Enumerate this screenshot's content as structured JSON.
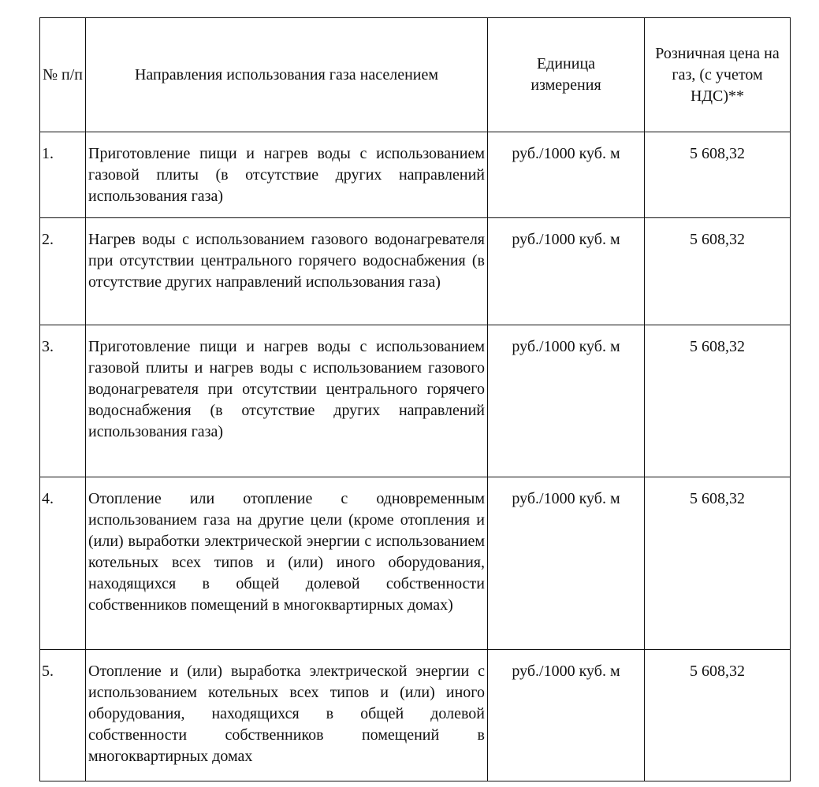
{
  "table": {
    "headers": {
      "number": "№ п/п",
      "direction": "Направления использования газа населением",
      "unit": "Единица измерения",
      "price": "Розничная цена на газ, (с учетом НДС)**"
    },
    "rows": [
      {
        "number": "1.",
        "direction": "Приготовление пищи и нагрев воды с использованием газовой плиты (в отсутствие других направлений использования газа)",
        "unit": "руб./1000 куб. м",
        "price": "5 608,32"
      },
      {
        "number": "2.",
        "direction": "Нагрев воды с использованием газового водонагревателя при отсутствии центрального горячего водоснабжения (в отсутствие других направлений использования газа)",
        "unit": "руб./1000 куб. м",
        "price": "5 608,32"
      },
      {
        "number": "3.",
        "direction": "Приготовление пищи и нагрев воды с использованием газовой плиты и нагрев воды с использованием газового водонагревателя при отсутствии центрального горячего водоснабжения (в отсутствие других направлений использования газа)",
        "unit": "руб./1000 куб. м",
        "price": "5 608,32"
      },
      {
        "number": "4.",
        "direction": "Отопление или отопление с одновременным использованием газа на другие цели (кроме отопления и (или) выработки электрической энергии с использованием котельных всех типов и (или) иного оборудования, находящихся в общей долевой собственности собственников помещений в многоквартирных домах)",
        "unit": "руб./1000 куб. м",
        "price": "5 608,32"
      },
      {
        "number": "5.",
        "direction": "Отопление и (или) выработка электрической энергии с использованием котельных всех типов и (или) иного оборудования, находящихся в общей долевой собственности собственников помещений в многоквартирных домах",
        "unit": "руб./1000 куб. м",
        "price": "5 608,32"
      }
    ]
  }
}
